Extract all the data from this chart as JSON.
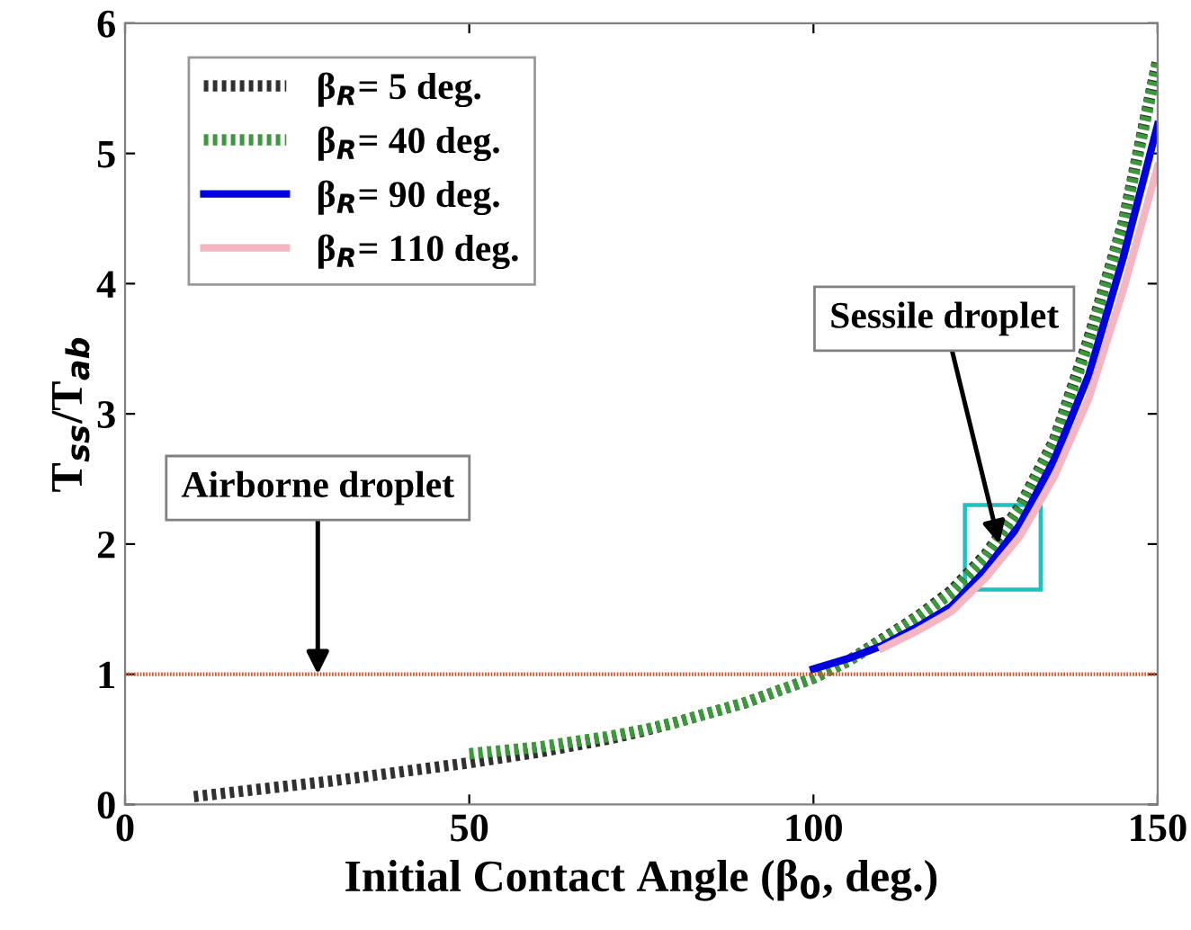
{
  "chart_data": {
    "type": "line",
    "xlabel": "Initial Contact Angle (β$_{0}$, deg.)",
    "ylabel": "T$_{ss}$/T$_{ab}$",
    "xlim": [
      0,
      150
    ],
    "ylim": [
      0,
      6
    ],
    "xticks": [
      0,
      50,
      100,
      150
    ],
    "yticks": [
      0,
      1,
      2,
      3,
      4,
      5,
      6
    ],
    "grid": false,
    "legend": "top left",
    "series": [
      {
        "name": "β$_{R}$= 5 deg.",
        "color": "#303030",
        "line_style": "dotted",
        "x": [
          10,
          20,
          30,
          40,
          50,
          60,
          70,
          75,
          80,
          90,
          100,
          105,
          110,
          115,
          120,
          125,
          130,
          135,
          140,
          145,
          150
        ],
        "values": [
          0.06,
          0.12,
          0.18,
          0.25,
          0.32,
          0.4,
          0.5,
          0.56,
          0.63,
          0.78,
          0.97,
          1.1,
          1.27,
          1.44,
          1.64,
          1.92,
          2.29,
          2.8,
          3.58,
          4.47,
          5.72
        ]
      },
      {
        "name": "β$_{R}$= 40 deg.",
        "color": "#3a9a3a",
        "line_style": "dotted",
        "x": [
          50,
          60,
          70,
          75,
          80,
          90,
          100,
          105,
          110,
          115,
          120,
          125,
          130,
          135,
          140,
          145,
          150
        ],
        "values": [
          0.39,
          0.44,
          0.52,
          0.57,
          0.63,
          0.78,
          0.97,
          1.1,
          1.26,
          1.43,
          1.62,
          1.9,
          2.27,
          2.78,
          3.55,
          4.45,
          5.7
        ]
      },
      {
        "name": "β$_{R}$= 90 deg.",
        "color": "#0000e0",
        "line_style": "solid",
        "x": [
          100,
          105,
          110,
          115,
          120,
          125,
          130,
          135,
          140,
          145,
          150
        ],
        "values": [
          1.04,
          1.12,
          1.22,
          1.36,
          1.52,
          1.8,
          2.15,
          2.65,
          3.3,
          4.2,
          5.22
        ]
      },
      {
        "name": "β$_{R}$= 110 deg.",
        "color": "#f4b6c0",
        "line_style": "solid",
        "x": [
          110,
          115,
          120,
          125,
          130,
          135,
          140,
          145,
          150
        ],
        "values": [
          1.2,
          1.33,
          1.48,
          1.74,
          2.06,
          2.52,
          3.12,
          3.95,
          4.9
        ]
      }
    ],
    "ref_lines": [
      {
        "axis": "y",
        "value": 1,
        "color": "#e05020",
        "line_style": "dotted"
      }
    ],
    "annotations": [
      {
        "text": "Airborne droplet",
        "x": 28,
        "y": 1
      },
      {
        "text": "Sessile droplet",
        "x": 127,
        "y": 2
      }
    ]
  }
}
